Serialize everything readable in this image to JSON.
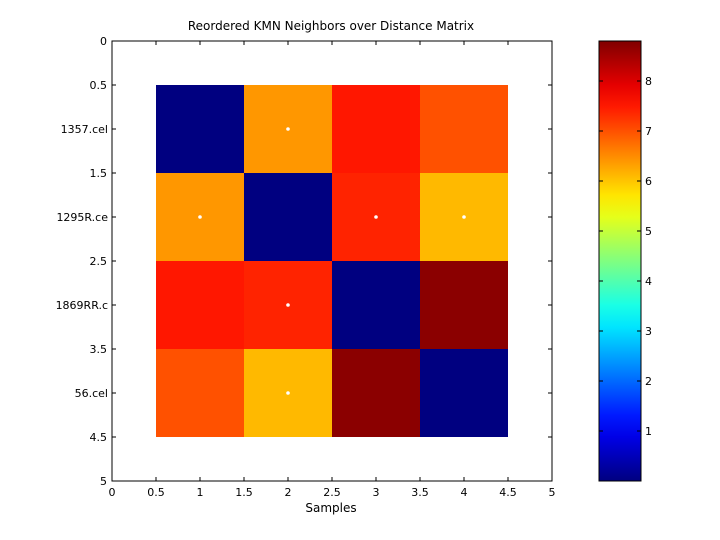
{
  "chart_data": {
    "type": "heatmap",
    "title": "Reordered KMN Neighbors over Distance Matrix",
    "xlabel": "Samples",
    "ylabel": "",
    "xlim": [
      0,
      5
    ],
    "ylim": [
      0,
      5
    ],
    "x_ticks": [
      "0",
      "0.5",
      "1",
      "1.5",
      "2",
      "2.5",
      "3",
      "3.5",
      "4",
      "4.5",
      "5"
    ],
    "y_ticks": [
      "0",
      "0.5",
      "1",
      "1.5",
      "2",
      "2.5",
      "3",
      "3.5",
      "4",
      "4.5",
      "5"
    ],
    "row_labels": [
      "1357.cel",
      "1295R.ce",
      "1869RR.c",
      "56.cel"
    ],
    "matrix": [
      [
        0.0,
        6.4,
        7.5,
        7.0
      ],
      [
        6.4,
        0.0,
        7.4,
        6.1
      ],
      [
        7.5,
        7.4,
        0.0,
        8.7
      ],
      [
        7.0,
        6.1,
        8.7,
        0.0
      ]
    ],
    "neighbor_markers": [
      {
        "row": 1,
        "col": 2
      },
      {
        "row": 2,
        "col": 1
      },
      {
        "row": 2,
        "col": 3
      },
      {
        "row": 2,
        "col": 4
      },
      {
        "row": 3,
        "col": 2
      },
      {
        "row": 4,
        "col": 2
      }
    ],
    "colormap": "jet",
    "colorbar": {
      "min": 0,
      "max": 8.8,
      "ticks": [
        "1",
        "2",
        "3",
        "4",
        "5",
        "6",
        "7",
        "8"
      ]
    },
    "grid": false
  }
}
